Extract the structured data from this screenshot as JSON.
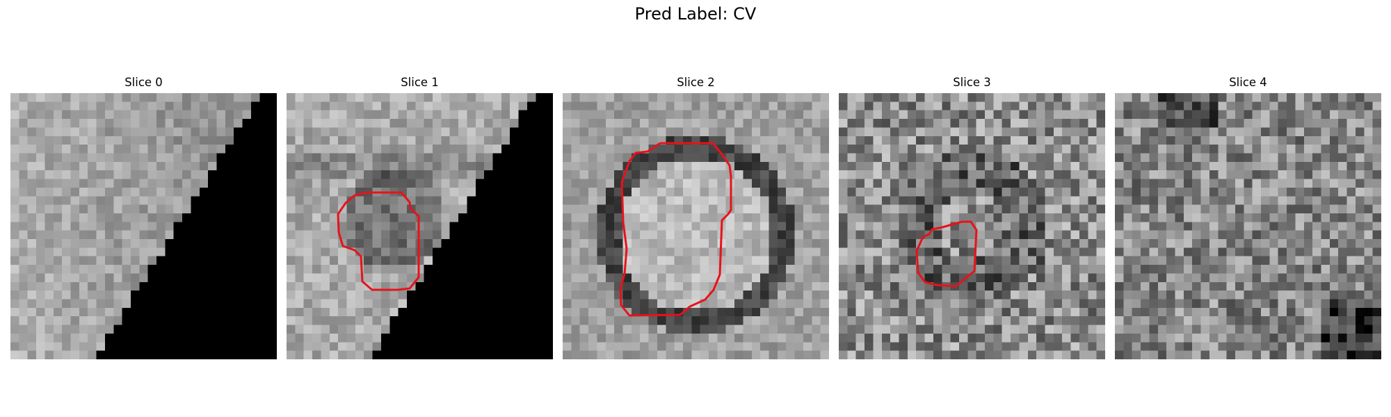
{
  "figure": {
    "title": "Pred Label: CV",
    "contour_color": "#e8121a"
  },
  "panels": [
    {
      "title": "Slice 0",
      "has_contour": false
    },
    {
      "title": "Slice 1",
      "has_contour": true
    },
    {
      "title": "Slice 2",
      "has_contour": true
    },
    {
      "title": "Slice 3",
      "has_contour": true
    },
    {
      "title": "Slice 4",
      "has_contour": false
    }
  ]
}
